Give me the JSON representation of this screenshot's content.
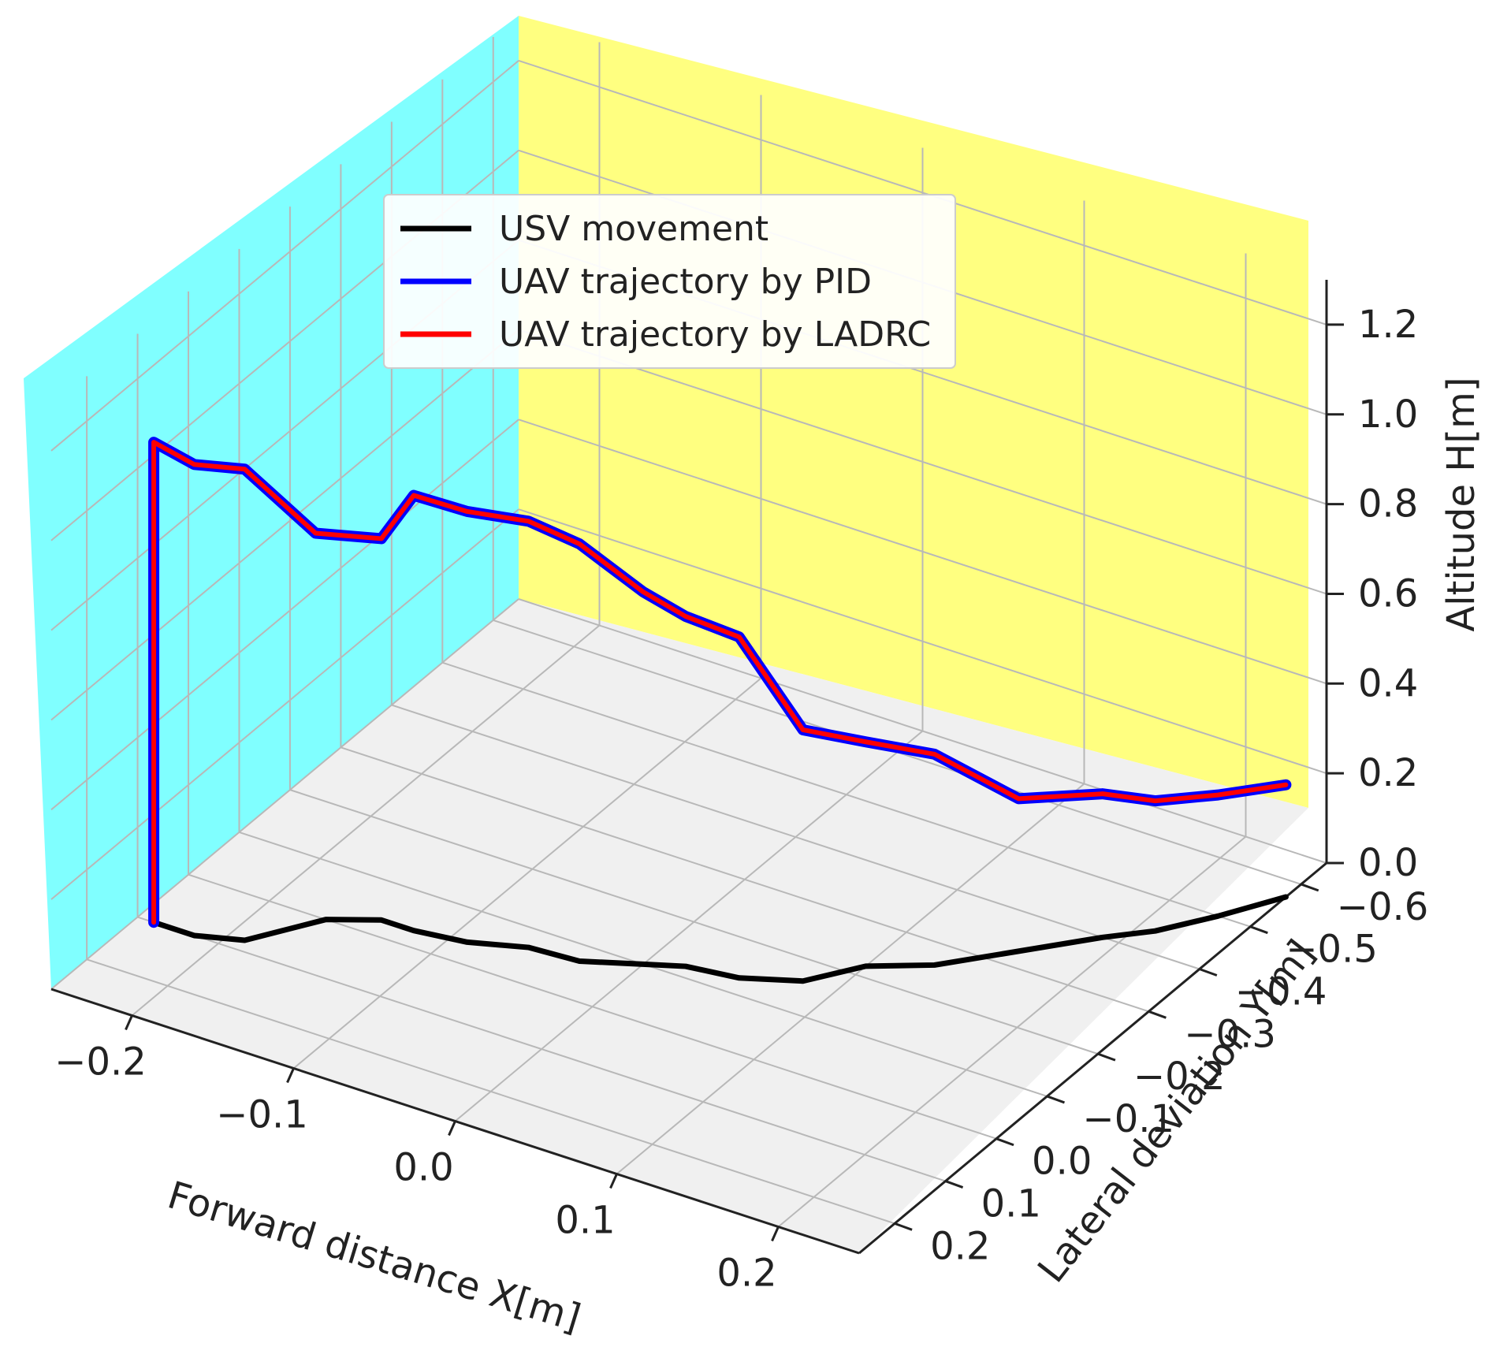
{
  "chart_data": {
    "type": "line3d",
    "title": "",
    "xlabel": "Forward distance X[m]",
    "ylabel": "Lateral deviation Y[m]",
    "zlabel": "Altitude H[m]",
    "x_ticks": [
      "−0.2",
      "−0.1",
      "0.0",
      "0.1",
      "0.2"
    ],
    "x_tick_values": [
      -0.2,
      -0.1,
      0.0,
      0.1,
      0.2
    ],
    "y_ticks": [
      "−0.6",
      "−0.5",
      "−0.4",
      "−0.3",
      "−0.2",
      "−0.1",
      "0.0",
      "0.1",
      "0.2"
    ],
    "y_tick_values": [
      -0.6,
      -0.5,
      -0.4,
      -0.3,
      -0.2,
      -0.1,
      0.0,
      0.1,
      0.2
    ],
    "z_ticks": [
      "0.0",
      "0.2",
      "0.4",
      "0.6",
      "0.8",
      "1.0",
      "1.2"
    ],
    "z_tick_values": [
      0.0,
      0.2,
      0.4,
      0.6,
      0.8,
      1.0,
      1.2
    ],
    "xlim": [
      -0.25,
      0.25
    ],
    "ylim": [
      -0.65,
      0.27
    ],
    "zlim": [
      0.0,
      1.3
    ],
    "grid": true,
    "legend_position": "upper-center",
    "colors": {
      "usv": "#000000",
      "pid": "#0000ff",
      "ladrc": "#ff0000",
      "back_pane": "#ffff80",
      "side_pane": "#80ffff",
      "floor_pane": "#f0f0f0"
    },
    "series": [
      {
        "name": "USV movement",
        "color": "#000000",
        "points": [
          [
            -0.24,
            0.1,
            0
          ],
          [
            -0.215,
            0.1,
            0
          ],
          [
            -0.19,
            0.08,
            0
          ],
          [
            -0.165,
            0.0,
            0
          ],
          [
            -0.14,
            -0.03,
            0
          ],
          [
            -0.12,
            -0.03,
            0
          ],
          [
            -0.09,
            -0.04,
            0
          ],
          [
            -0.06,
            -0.065,
            0
          ],
          [
            -0.03,
            -0.07,
            0
          ],
          [
            0.0,
            -0.1,
            0
          ],
          [
            0.02,
            -0.12,
            0
          ],
          [
            0.05,
            -0.13,
            0
          ],
          [
            0.08,
            -0.16,
            0
          ],
          [
            0.1,
            -0.22,
            0
          ],
          [
            0.13,
            -0.26,
            0
          ],
          [
            0.16,
            -0.33,
            0
          ],
          [
            0.19,
            -0.4,
            0
          ],
          [
            0.21,
            -0.44,
            0
          ],
          [
            0.23,
            -0.5,
            0
          ],
          [
            0.25,
            -0.57,
            0
          ]
        ]
      },
      {
        "name": "UAV trajectory by PID",
        "color": "#0000ff",
        "points": [
          [
            -0.24,
            0.1,
            0
          ],
          [
            -0.24,
            0.1,
            1.07
          ],
          [
            -0.215,
            0.1,
            1.05
          ],
          [
            -0.19,
            0.08,
            1.05
          ],
          [
            -0.165,
            0.02,
            0.88
          ],
          [
            -0.14,
            -0.03,
            0.85
          ],
          [
            -0.12,
            -0.03,
            0.97
          ],
          [
            -0.09,
            -0.04,
            0.96
          ],
          [
            -0.06,
            -0.065,
            0.95
          ],
          [
            -0.03,
            -0.07,
            0.93
          ],
          [
            0.0,
            -0.1,
            0.83
          ],
          [
            0.02,
            -0.12,
            0.78
          ],
          [
            0.05,
            -0.13,
            0.76
          ],
          [
            0.08,
            -0.16,
            0.56
          ],
          [
            0.1,
            -0.22,
            0.5
          ],
          [
            0.13,
            -0.26,
            0.47
          ],
          [
            0.16,
            -0.33,
            0.34
          ],
          [
            0.19,
            -0.4,
            0.32
          ],
          [
            0.21,
            -0.44,
            0.29
          ],
          [
            0.23,
            -0.5,
            0.27
          ],
          [
            0.25,
            -0.57,
            0.25
          ]
        ]
      },
      {
        "name": "UAV trajectory by LADRC",
        "color": "#ff0000",
        "points": [
          [
            -0.24,
            0.1,
            0
          ],
          [
            -0.24,
            0.1,
            1.07
          ],
          [
            -0.215,
            0.1,
            1.05
          ],
          [
            -0.19,
            0.08,
            1.05
          ],
          [
            -0.165,
            0.02,
            0.88
          ],
          [
            -0.14,
            -0.03,
            0.85
          ],
          [
            -0.12,
            -0.03,
            0.97
          ],
          [
            -0.09,
            -0.04,
            0.96
          ],
          [
            -0.06,
            -0.065,
            0.95
          ],
          [
            -0.03,
            -0.07,
            0.93
          ],
          [
            0.0,
            -0.1,
            0.83
          ],
          [
            0.02,
            -0.12,
            0.78
          ],
          [
            0.05,
            -0.13,
            0.76
          ],
          [
            0.08,
            -0.16,
            0.56
          ],
          [
            0.1,
            -0.22,
            0.5
          ],
          [
            0.13,
            -0.26,
            0.47
          ],
          [
            0.16,
            -0.33,
            0.34
          ],
          [
            0.19,
            -0.4,
            0.32
          ],
          [
            0.21,
            -0.44,
            0.29
          ],
          [
            0.23,
            -0.5,
            0.27
          ],
          [
            0.25,
            -0.57,
            0.25
          ]
        ]
      }
    ]
  }
}
